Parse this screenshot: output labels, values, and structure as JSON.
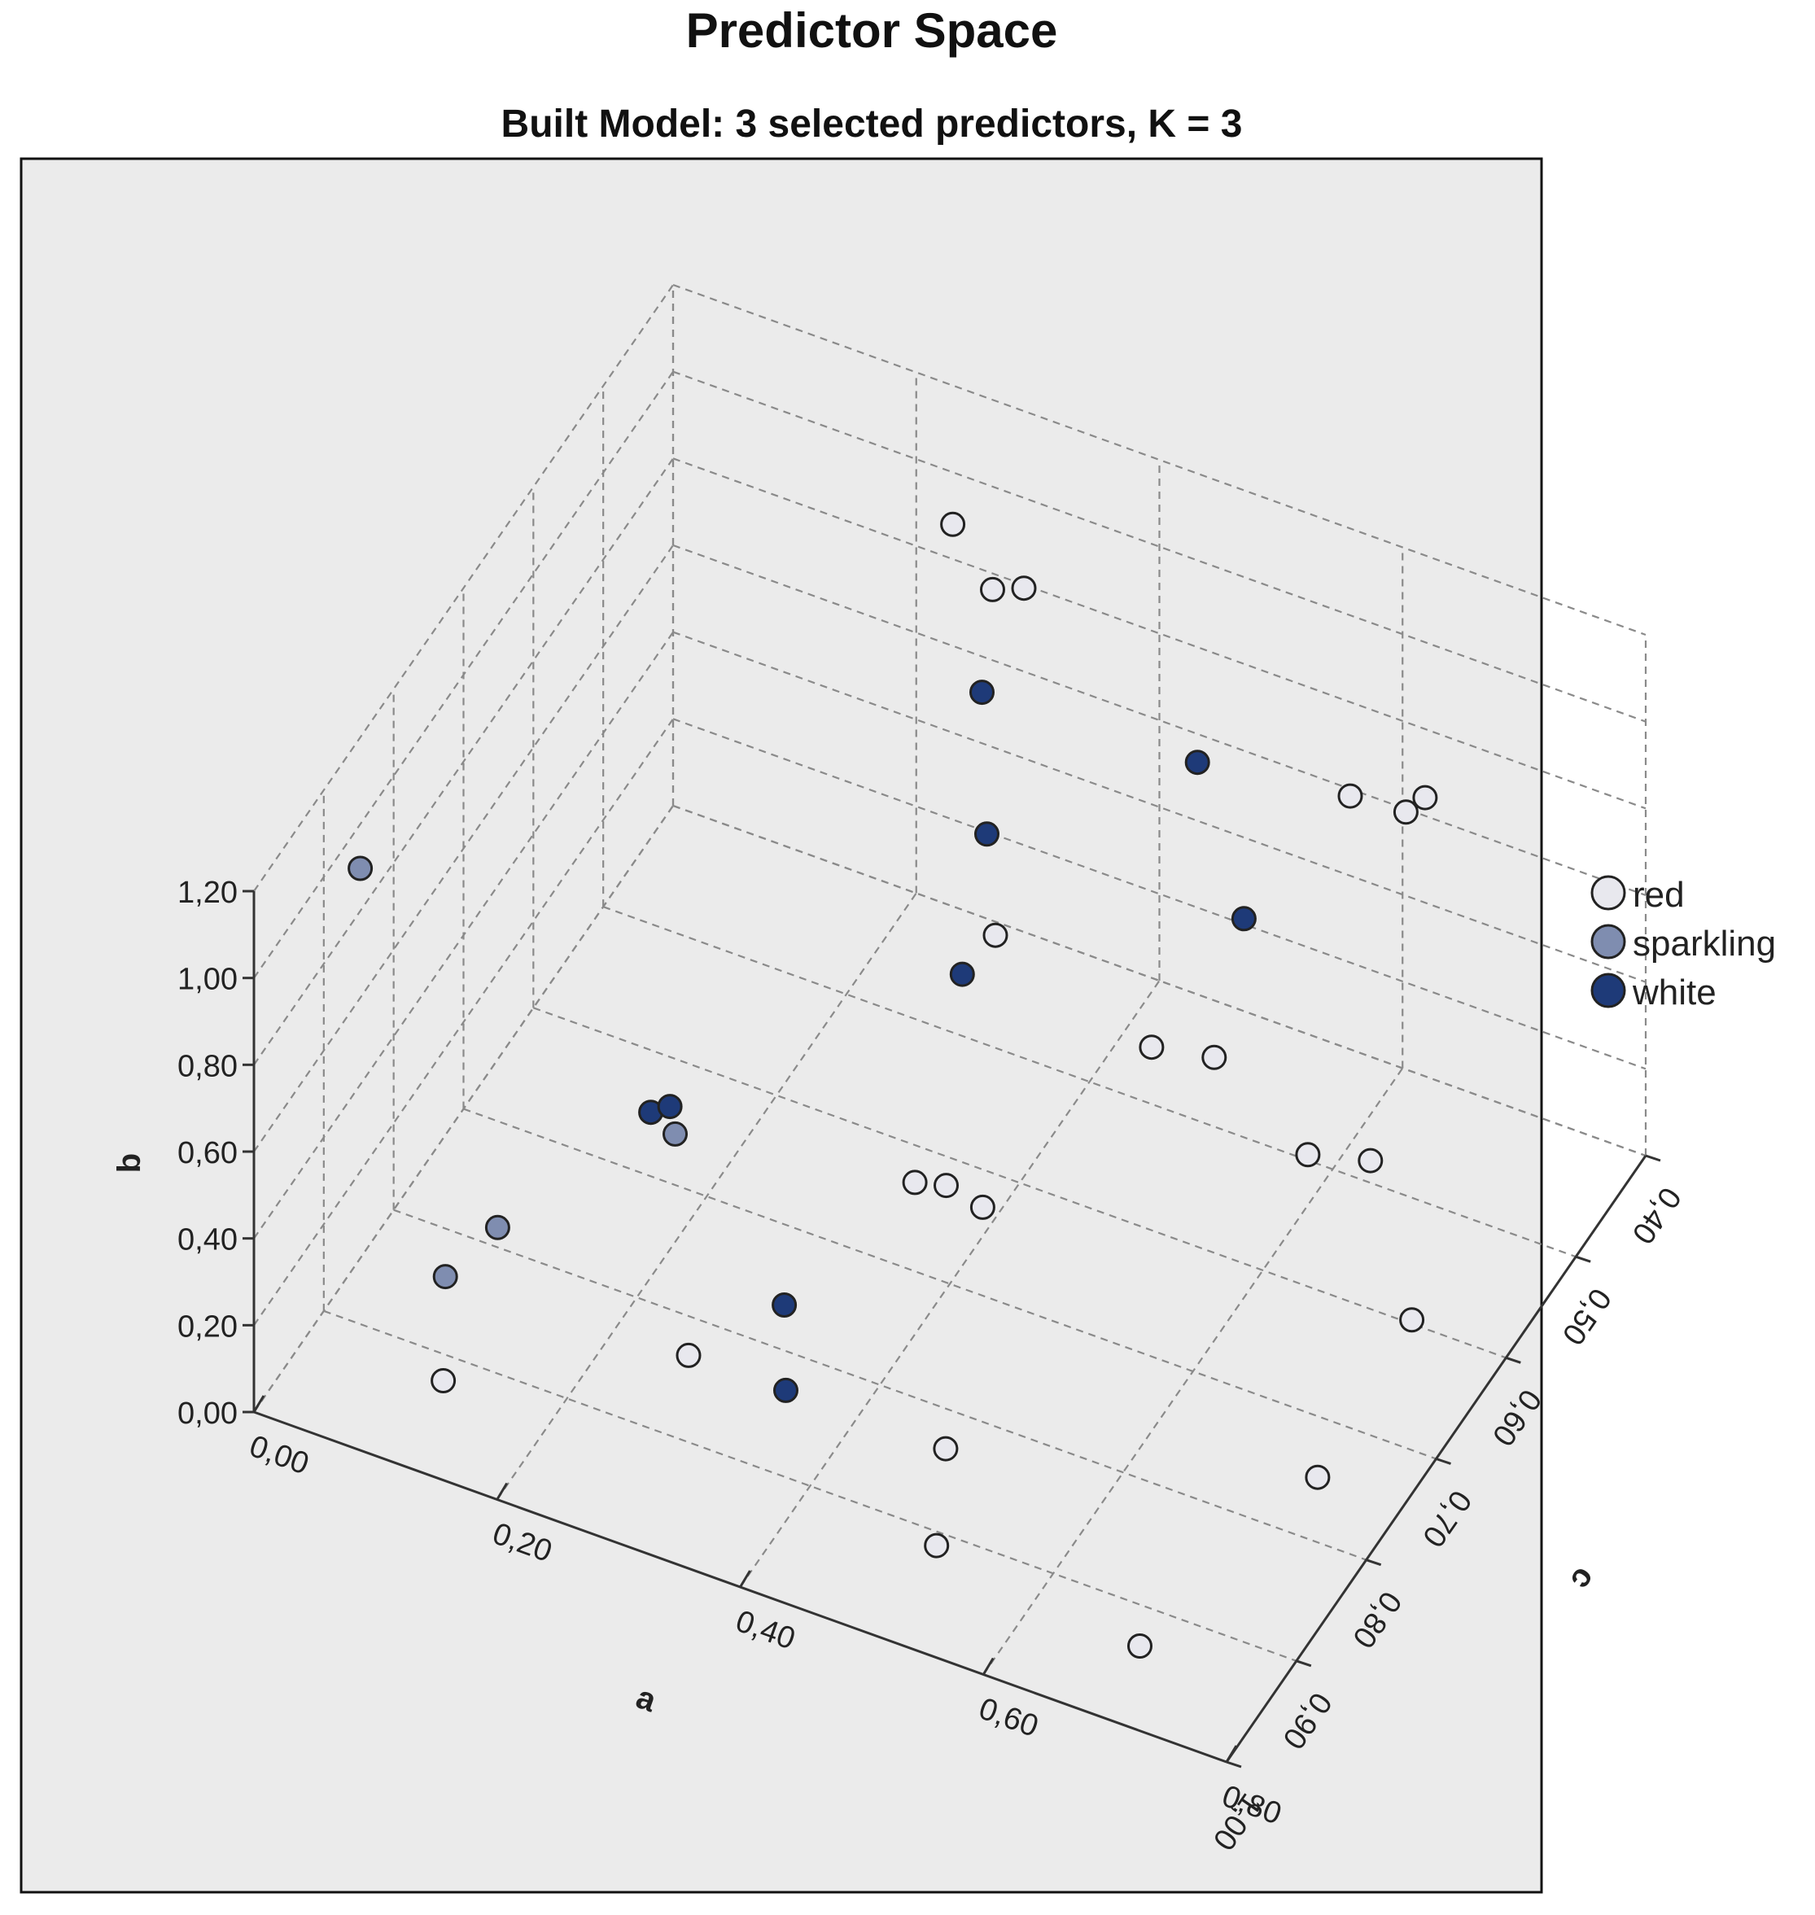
{
  "chart_data": {
    "type": "scatter3d",
    "title": "Predictor Space",
    "subtitle": "Built Model: 3 selected predictors, K = 3",
    "axes": {
      "a": {
        "label": "a",
        "range": [
          0.0,
          0.8
        ],
        "ticks": [
          "0,00",
          "0,20",
          "0,40",
          "0,60",
          "0,80"
        ]
      },
      "b": {
        "label": "b",
        "range": [
          0.0,
          1.2
        ],
        "ticks": [
          "0,00",
          "0,20",
          "0,40",
          "0,60",
          "0,80",
          "1,00",
          "1,20"
        ]
      },
      "c": {
        "label": "c",
        "range": [
          0.4,
          1.0
        ],
        "ticks": [
          "0,40",
          "0,50",
          "0,60",
          "0,70",
          "0,80",
          "0,90",
          "1,00"
        ]
      }
    },
    "legend": {
      "position": "right"
    },
    "series": [
      {
        "name": "red",
        "color": "#e8e8ee",
        "points": [
          {
            "a": 0.23,
            "b": 0.88,
            "c": 0.4
          },
          {
            "a": 0.28,
            "b": 0.85,
            "c": 0.43
          },
          {
            "a": 0.3,
            "b": 0.85,
            "c": 0.42
          },
          {
            "a": 0.58,
            "b": 0.7,
            "c": 0.44
          },
          {
            "a": 0.62,
            "b": 0.68,
            "c": 0.43
          },
          {
            "a": 0.63,
            "b": 0.7,
            "c": 0.42
          },
          {
            "a": 0.38,
            "b": 0.55,
            "c": 0.6
          },
          {
            "a": 0.52,
            "b": 0.48,
            "c": 0.62
          },
          {
            "a": 0.56,
            "b": 0.45,
            "c": 0.6
          },
          {
            "a": 0.66,
            "b": 0.42,
            "c": 0.64
          },
          {
            "a": 0.7,
            "b": 0.4,
            "c": 0.62
          },
          {
            "a": 0.4,
            "b": 0.35,
            "c": 0.75
          },
          {
            "a": 0.42,
            "b": 0.34,
            "c": 0.74
          },
          {
            "a": 0.45,
            "b": 0.32,
            "c": 0.74
          },
          {
            "a": 0.3,
            "b": 0.2,
            "c": 0.9
          },
          {
            "a": 0.5,
            "b": 0.14,
            "c": 0.88
          },
          {
            "a": 0.55,
            "b": 0.2,
            "c": 0.98
          },
          {
            "a": 0.15,
            "b": 0.2,
            "c": 0.99
          },
          {
            "a": 0.78,
            "b": 0.3,
            "c": 0.7
          },
          {
            "a": 0.76,
            "b": 0.15,
            "c": 0.8
          },
          {
            "a": 0.7,
            "b": 0.05,
            "c": 0.95
          }
        ]
      },
      {
        "name": "sparkling",
        "color": "#7f8db0",
        "points": [
          {
            "a": 0.03,
            "b": 1.05,
            "c": 0.9
          },
          {
            "a": 0.22,
            "b": 0.35,
            "c": 0.78
          },
          {
            "a": 0.12,
            "b": 0.22,
            "c": 0.86
          },
          {
            "a": 0.1,
            "b": 0.18,
            "c": 0.9
          }
        ]
      },
      {
        "name": "white",
        "color": "#1e3a78",
        "points": [
          {
            "a": 0.3,
            "b": 0.75,
            "c": 0.48
          },
          {
            "a": 0.35,
            "b": 0.66,
            "c": 0.56
          },
          {
            "a": 0.46,
            "b": 0.68,
            "c": 0.45
          },
          {
            "a": 0.55,
            "b": 0.62,
            "c": 0.54
          },
          {
            "a": 0.37,
            "b": 0.52,
            "c": 0.63
          },
          {
            "a": 0.2,
            "b": 0.38,
            "c": 0.78
          },
          {
            "a": 0.21,
            "b": 0.38,
            "c": 0.77
          },
          {
            "a": 0.35,
            "b": 0.25,
            "c": 0.85
          },
          {
            "a": 0.38,
            "b": 0.2,
            "c": 0.9
          }
        ]
      }
    ]
  }
}
